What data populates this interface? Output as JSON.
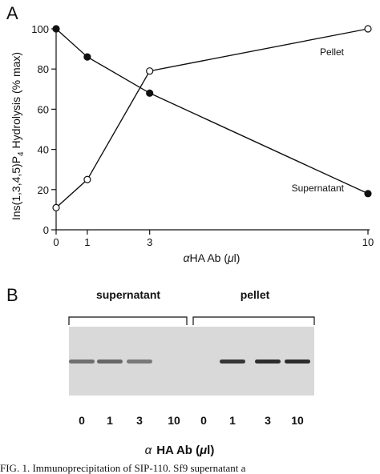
{
  "panel_a": {
    "letter": "A",
    "xlabel_prefix": "α",
    "xlabel_main": "HA Ab (",
    "xlabel_unit": "μ",
    "xlabel_end": "l)",
    "ylabel_pre": "Ins(1,3,4,5)P",
    "ylabel_sub": "4",
    "ylabel_post": " Hydrolysis (% max)"
  },
  "chart_data": {
    "type": "line",
    "xlabel": "αHA Ab (μl)",
    "ylabel": "Ins(1,3,4,5)P4 Hydrolysis (% max)",
    "x_ticks": [
      0,
      1,
      3,
      10
    ],
    "y_ticks": [
      0,
      20,
      40,
      60,
      80,
      100
    ],
    "xlim": [
      0,
      10
    ],
    "ylim": [
      0,
      100
    ],
    "series": [
      {
        "name": "Pellet",
        "marker": "open-circle",
        "x": [
          0,
          1,
          3,
          10
        ],
        "values": [
          11,
          25,
          79,
          100
        ]
      },
      {
        "name": "Supernatant",
        "marker": "filled-circle",
        "x": [
          0,
          1,
          3,
          10
        ],
        "values": [
          100,
          86,
          68,
          18
        ]
      }
    ]
  },
  "panel_b": {
    "letter": "B",
    "groups": [
      "supernatant",
      "pellet"
    ],
    "lanes": [
      "0",
      "1",
      "3",
      "10",
      "0",
      "1",
      "3",
      "10"
    ],
    "band_intensity": [
      0.55,
      0.6,
      0.5,
      0,
      0,
      0.85,
      0.9,
      0.9
    ],
    "xlabel_prefix": "α",
    "xlabel_main": "HA Ab (",
    "xlabel_unit": "μ",
    "xlabel_end": "l)"
  },
  "caption": {
    "text": "FIG. 1. Immunoprecipitation of SIP-110. Sf9 supernatant a"
  },
  "colors": {
    "ink": "#111111",
    "gel_bg": "#d9d9d9",
    "band": "#1a1a1a"
  }
}
